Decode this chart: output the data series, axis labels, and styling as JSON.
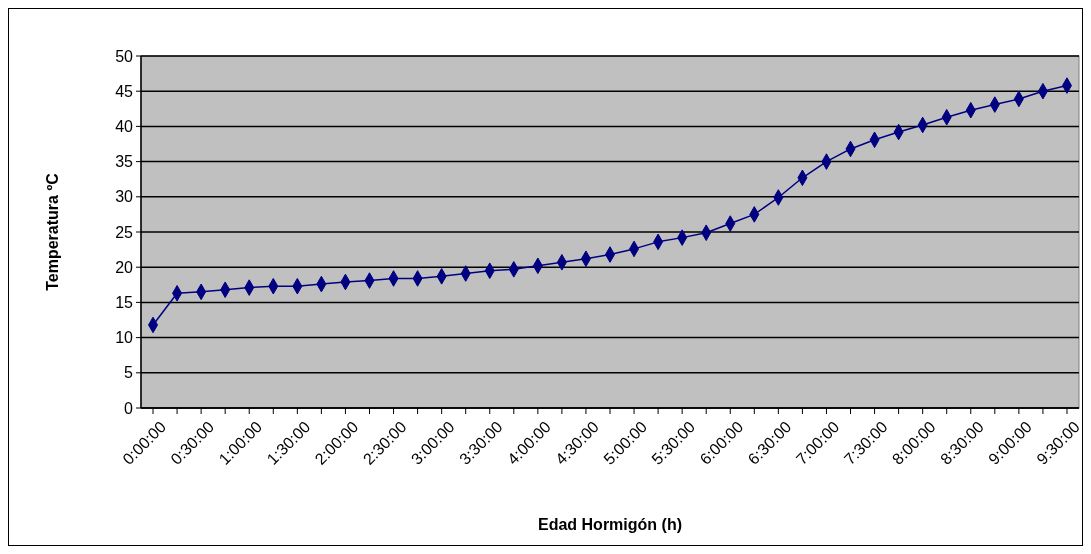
{
  "chart_data": {
    "type": "line",
    "xlabel": "Edad Hormigón (h)",
    "ylabel": "Temperatura ºC",
    "categories": [
      "0:00:00",
      null,
      "0:30:00",
      null,
      "1:00:00",
      null,
      "1:30:00",
      null,
      "2:00:00",
      null,
      "2:30:00",
      null,
      "3:00:00",
      null,
      "3:30:00",
      null,
      "4:00:00",
      null,
      "4:30:00",
      null,
      "5:00:00",
      null,
      "5:30:00",
      null,
      "6:00:00",
      null,
      "6:30:00",
      null,
      "7:00:00",
      null,
      "7:30:00",
      null,
      "8:00:00",
      null,
      "8:30:00",
      null,
      "9:00:00",
      null,
      "9:30:00"
    ],
    "series": [
      {
        "color": "#000080",
        "values": [
          11.8,
          16.3,
          16.5,
          16.8,
          17.1,
          17.3,
          17.3,
          17.6,
          17.9,
          18.1,
          18.4,
          18.4,
          18.7,
          19.1,
          19.5,
          19.7,
          20.2,
          20.7,
          21.2,
          21.8,
          22.6,
          23.6,
          24.2,
          24.9,
          26.2,
          27.5,
          29.9,
          32.7,
          35.0,
          36.8,
          38.1,
          39.2,
          40.2,
          41.3,
          42.3,
          43.1,
          43.9,
          45.0,
          45.8
        ]
      }
    ],
    "ylim": [
      0,
      50
    ],
    "yticks": [
      0,
      5,
      10,
      15,
      20,
      25,
      30,
      35,
      40,
      45,
      50
    ],
    "grid": "y",
    "marker": "diamond",
    "line_style": "solid"
  }
}
